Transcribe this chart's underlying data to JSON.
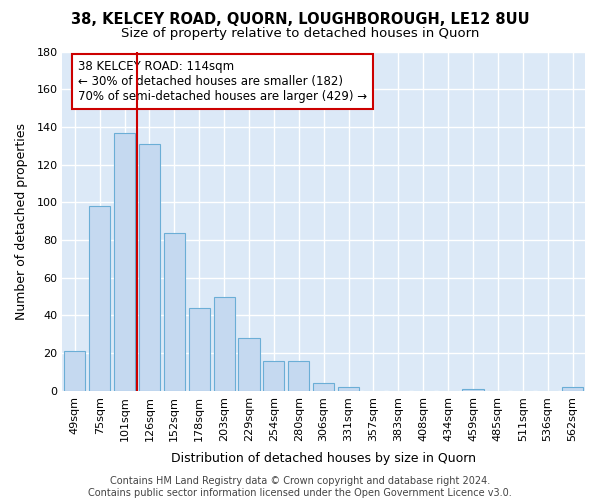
{
  "title": "38, KELCEY ROAD, QUORN, LOUGHBOROUGH, LE12 8UU",
  "subtitle": "Size of property relative to detached houses in Quorn",
  "xlabel": "Distribution of detached houses by size in Quorn",
  "ylabel": "Number of detached properties",
  "categories": [
    "49sqm",
    "75sqm",
    "101sqm",
    "126sqm",
    "152sqm",
    "178sqm",
    "203sqm",
    "229sqm",
    "254sqm",
    "280sqm",
    "306sqm",
    "331sqm",
    "357sqm",
    "383sqm",
    "408sqm",
    "434sqm",
    "459sqm",
    "485sqm",
    "511sqm",
    "536sqm",
    "562sqm"
  ],
  "values": [
    21,
    98,
    137,
    131,
    84,
    44,
    50,
    28,
    16,
    16,
    4,
    2,
    0,
    0,
    0,
    0,
    1,
    0,
    0,
    0,
    2
  ],
  "bar_color": "#c5d9f0",
  "bar_edge_color": "#6baed6",
  "background_color": "#dce9f7",
  "grid_color": "#ffffff",
  "vline_color": "#cc0000",
  "vline_x_index": 2.5,
  "annotation_text_line1": "38 KELCEY ROAD: 114sqm",
  "annotation_text_line2": "← 30% of detached houses are smaller (182)",
  "annotation_text_line3": "70% of semi-detached houses are larger (429) →",
  "footer_text": "Contains HM Land Registry data © Crown copyright and database right 2024.\nContains public sector information licensed under the Open Government Licence v3.0.",
  "ylim": [
    0,
    180
  ],
  "yticks": [
    0,
    20,
    40,
    60,
    80,
    100,
    120,
    140,
    160,
    180
  ],
  "title_fontsize": 10.5,
  "subtitle_fontsize": 9.5,
  "label_fontsize": 9,
  "tick_fontsize": 8,
  "annotation_fontsize": 8.5,
  "footer_fontsize": 7
}
